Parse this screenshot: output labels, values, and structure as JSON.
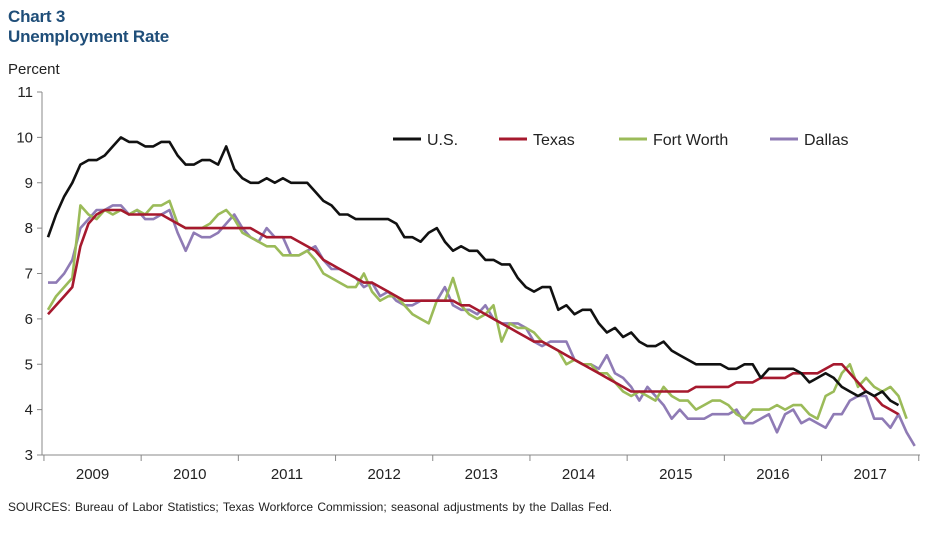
{
  "header": {
    "chart_number": "Chart 3",
    "title": "Unemployment Rate"
  },
  "footer": {
    "sources": "SOURCES: Bureau of Labor Statistics; Texas Workforce Commission; seasonal adjustments by the Dallas Fed."
  },
  "chart_data": {
    "type": "line",
    "title": "Unemployment Rate",
    "ylabel": "Percent",
    "xlabel": "",
    "ylim": [
      3,
      11
    ],
    "yticks": [
      3,
      4,
      5,
      6,
      7,
      8,
      9,
      10,
      11
    ],
    "x_start": "2009-01",
    "x_frequency": "monthly",
    "x_tick_labels": [
      "2009",
      "2010",
      "2011",
      "2012",
      "2013",
      "2014",
      "2015",
      "2016",
      "2017"
    ],
    "grid": false,
    "legend_position": "top-right",
    "series": [
      {
        "name": "U.S.",
        "color": "#111111",
        "values": [
          7.8,
          8.3,
          8.7,
          9.0,
          9.4,
          9.5,
          9.5,
          9.6,
          9.8,
          10.0,
          9.9,
          9.9,
          9.8,
          9.8,
          9.9,
          9.9,
          9.6,
          9.4,
          9.4,
          9.5,
          9.5,
          9.4,
          9.8,
          9.3,
          9.1,
          9.0,
          9.0,
          9.1,
          9.0,
          9.1,
          9.0,
          9.0,
          9.0,
          8.8,
          8.6,
          8.5,
          8.3,
          8.3,
          8.2,
          8.2,
          8.2,
          8.2,
          8.2,
          8.1,
          7.8,
          7.8,
          7.7,
          7.9,
          8.0,
          7.7,
          7.5,
          7.6,
          7.5,
          7.5,
          7.3,
          7.3,
          7.2,
          7.2,
          6.9,
          6.7,
          6.6,
          6.7,
          6.7,
          6.2,
          6.3,
          6.1,
          6.2,
          6.2,
          5.9,
          5.7,
          5.8,
          5.6,
          5.7,
          5.5,
          5.4,
          5.4,
          5.5,
          5.3,
          5.2,
          5.1,
          5.0,
          5.0,
          5.0,
          5.0,
          4.9,
          4.9,
          5.0,
          5.0,
          4.7,
          4.9,
          4.9,
          4.9,
          4.9,
          4.8,
          4.6,
          4.7,
          4.8,
          4.7,
          4.5,
          4.4,
          4.3,
          4.4,
          4.3,
          4.4,
          4.2,
          4.1
        ]
      },
      {
        "name": "Texas",
        "color": "#a6192e",
        "values": [
          6.1,
          6.3,
          6.5,
          6.7,
          7.6,
          8.1,
          8.3,
          8.4,
          8.4,
          8.4,
          8.3,
          8.3,
          8.3,
          8.3,
          8.3,
          8.2,
          8.1,
          8.0,
          8.0,
          8.0,
          8.0,
          8.0,
          8.0,
          8.0,
          8.0,
          8.0,
          7.9,
          7.8,
          7.8,
          7.8,
          7.8,
          7.7,
          7.6,
          7.5,
          7.3,
          7.2,
          7.1,
          7.0,
          6.9,
          6.8,
          6.8,
          6.7,
          6.6,
          6.5,
          6.4,
          6.4,
          6.4,
          6.4,
          6.4,
          6.4,
          6.4,
          6.3,
          6.3,
          6.2,
          6.1,
          6.0,
          5.9,
          5.8,
          5.7,
          5.6,
          5.5,
          5.5,
          5.4,
          5.3,
          5.2,
          5.1,
          5.0,
          4.9,
          4.8,
          4.7,
          4.6,
          4.5,
          4.4,
          4.4,
          4.4,
          4.4,
          4.4,
          4.4,
          4.4,
          4.4,
          4.5,
          4.5,
          4.5,
          4.5,
          4.5,
          4.6,
          4.6,
          4.6,
          4.7,
          4.7,
          4.7,
          4.7,
          4.8,
          4.8,
          4.8,
          4.8,
          4.9,
          5.0,
          5.0,
          4.8,
          4.6,
          4.4,
          4.3,
          4.1,
          4.0,
          3.9
        ]
      },
      {
        "name": "Fort Worth",
        "color": "#9bbb59",
        "values": [
          6.2,
          6.5,
          6.7,
          6.9,
          8.5,
          8.3,
          8.2,
          8.4,
          8.3,
          8.4,
          8.3,
          8.4,
          8.3,
          8.5,
          8.5,
          8.6,
          8.1,
          8.0,
          8.0,
          8.0,
          8.1,
          8.3,
          8.4,
          8.2,
          7.9,
          7.8,
          7.7,
          7.6,
          7.6,
          7.4,
          7.4,
          7.4,
          7.5,
          7.3,
          7.0,
          6.9,
          6.8,
          6.7,
          6.7,
          7.0,
          6.6,
          6.4,
          6.5,
          6.5,
          6.3,
          6.1,
          6.0,
          5.9,
          6.4,
          6.4,
          6.9,
          6.3,
          6.1,
          6.0,
          6.1,
          6.3,
          5.5,
          5.9,
          5.8,
          5.8,
          5.7,
          5.5,
          5.4,
          5.3,
          5.0,
          5.1,
          5.0,
          5.0,
          4.8,
          4.8,
          4.6,
          4.4,
          4.3,
          4.4,
          4.3,
          4.2,
          4.5,
          4.3,
          4.2,
          4.2,
          4.0,
          4.1,
          4.2,
          4.2,
          4.1,
          3.9,
          3.8,
          4.0,
          4.0,
          4.0,
          4.1,
          4.0,
          4.1,
          4.1,
          3.9,
          3.8,
          4.3,
          4.4,
          4.8,
          5.0,
          4.5,
          4.7,
          4.5,
          4.4,
          4.5,
          4.3,
          3.8
        ]
      },
      {
        "name": "Dallas",
        "color": "#8f7bb5",
        "values": [
          6.8,
          6.8,
          7.0,
          7.3,
          8.0,
          8.2,
          8.4,
          8.4,
          8.5,
          8.5,
          8.3,
          8.4,
          8.2,
          8.2,
          8.3,
          8.4,
          7.9,
          7.5,
          7.9,
          7.8,
          7.8,
          7.9,
          8.1,
          8.3,
          8.0,
          7.8,
          7.7,
          8.0,
          7.8,
          7.8,
          7.4,
          7.4,
          7.5,
          7.6,
          7.3,
          7.1,
          7.1,
          7.0,
          6.9,
          6.7,
          6.8,
          6.5,
          6.6,
          6.4,
          6.3,
          6.3,
          6.4,
          6.4,
          6.4,
          6.7,
          6.3,
          6.2,
          6.2,
          6.1,
          6.3,
          6.0,
          5.9,
          5.9,
          5.9,
          5.8,
          5.5,
          5.4,
          5.5,
          5.5,
          5.5,
          5.1,
          5.0,
          5.0,
          4.9,
          5.2,
          4.8,
          4.7,
          4.5,
          4.2,
          4.5,
          4.3,
          4.1,
          3.8,
          4.0,
          3.8,
          3.8,
          3.8,
          3.9,
          3.9,
          3.9,
          4.0,
          3.7,
          3.7,
          3.8,
          3.9,
          3.5,
          3.9,
          4.0,
          3.7,
          3.8,
          3.7,
          3.6,
          3.9,
          3.9,
          4.2,
          4.3,
          4.3,
          3.8,
          3.8,
          3.6,
          3.9,
          3.5,
          3.2
        ]
      }
    ]
  }
}
